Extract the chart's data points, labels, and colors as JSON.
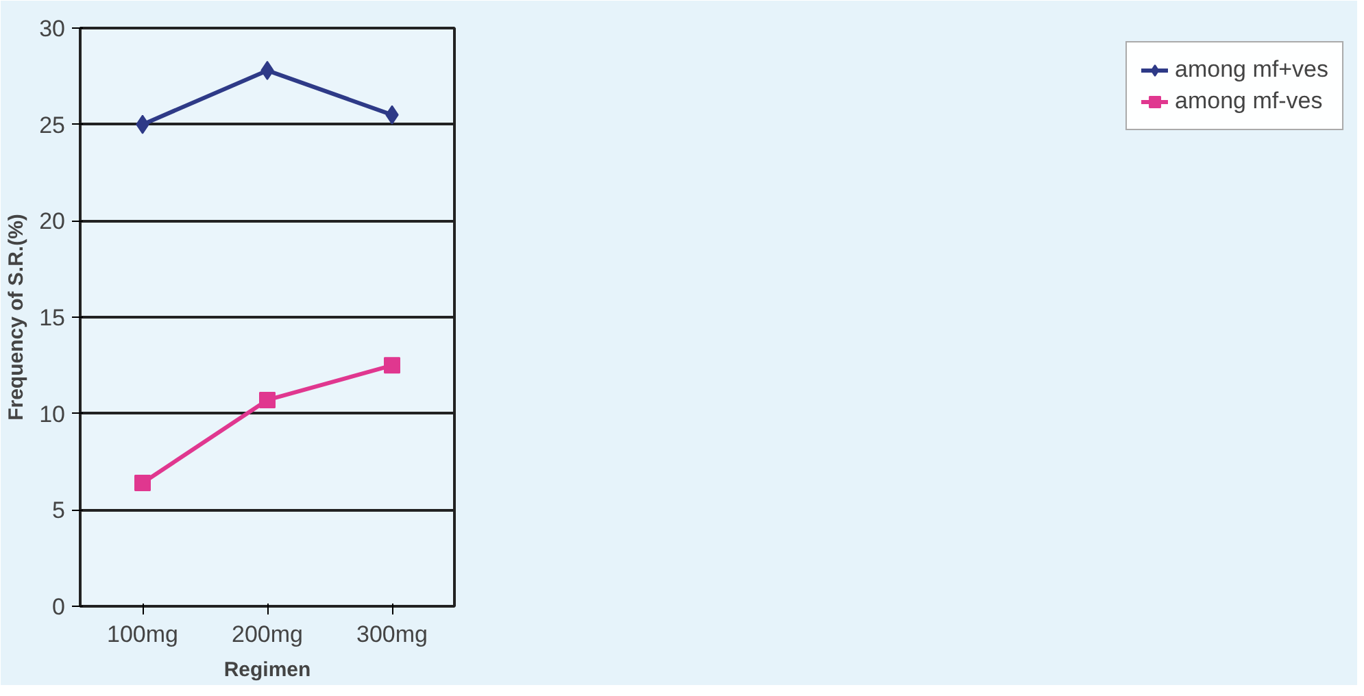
{
  "chart_data": {
    "type": "line",
    "xlabel": "Regimen",
    "ylabel": "Frequency of S.R.(%)",
    "categories": [
      "100mg",
      "200mg",
      "300mg"
    ],
    "series": [
      {
        "name": "among mf+ves",
        "color": "#2e3a87",
        "marker": "diamond",
        "values": [
          25.0,
          27.8,
          25.5
        ]
      },
      {
        "name": "among mf-ves",
        "color": "#e0378f",
        "marker": "square",
        "values": [
          6.4,
          10.7,
          12.5
        ]
      }
    ],
    "ylim": [
      0,
      30
    ],
    "yticks": [
      0,
      5,
      10,
      15,
      20,
      25,
      30
    ],
    "grid": "y",
    "legend": "right",
    "line_style": "solid"
  }
}
